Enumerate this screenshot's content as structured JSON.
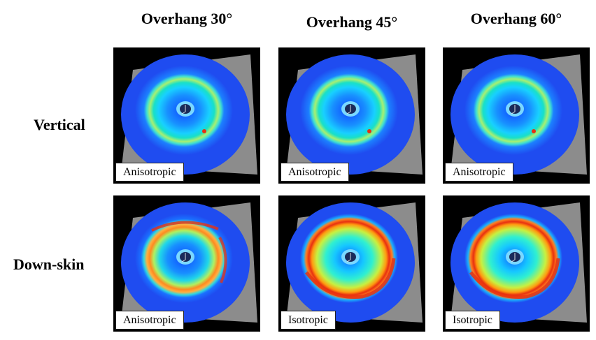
{
  "columns": [
    "Overhang 30°",
    "Overhang 45°",
    "Overhang 60°"
  ],
  "rows": [
    {
      "label": "Vertical",
      "panels": [
        {
          "tag": "Anisotropic",
          "pattern": "aniso-thin"
        },
        {
          "tag": "Anisotropic",
          "pattern": "aniso-thin"
        },
        {
          "tag": "Anisotropic",
          "pattern": "aniso-thin"
        }
      ]
    },
    {
      "label": "Down-skin",
      "panels": [
        {
          "tag": "Anisotropic",
          "pattern": "aniso-red"
        },
        {
          "tag": "Isotropic",
          "pattern": "iso-wide"
        },
        {
          "tag": "Isotropic",
          "pattern": "iso-wide"
        }
      ]
    }
  ],
  "colors": {
    "background": "#000000",
    "plate": "#8c8c8c",
    "field_low": "#1f4cf0",
    "ring_mid": "#18e0c8",
    "ring_high": "#e83010"
  }
}
